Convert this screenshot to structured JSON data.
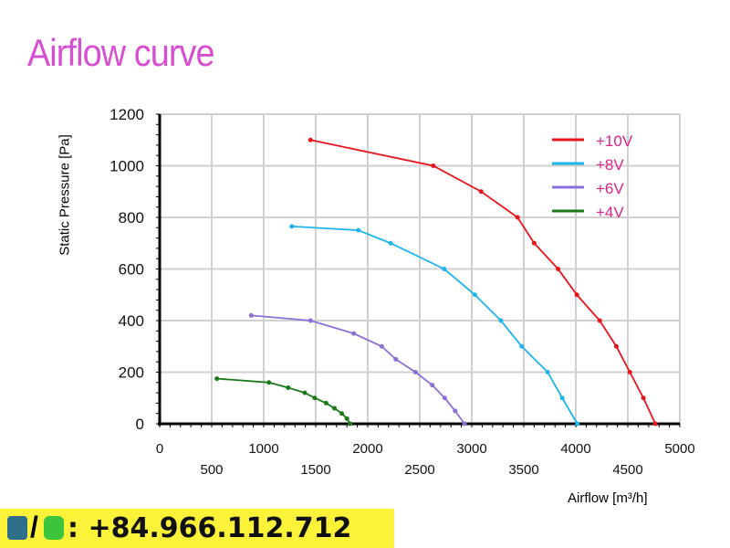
{
  "title": "Airflow curve",
  "contact": {
    "text": ": +84.966.112.712",
    "phone_icon": "phone-icon",
    "whatsapp_icon": "whatsapp-icon",
    "separator": "/"
  },
  "chart_data": {
    "type": "line",
    "title": "Airflow curve",
    "xlabel": "Airflow [m³/h]",
    "ylabel": "Static Pressure [Pa]",
    "xlim": [
      0,
      5000
    ],
    "ylim": [
      0,
      1200
    ],
    "xticks": [
      0,
      500,
      1000,
      1500,
      2000,
      2500,
      3000,
      3500,
      4000,
      4500,
      5000
    ],
    "yticks": [
      0,
      200,
      400,
      600,
      800,
      1000,
      1200
    ],
    "grid": true,
    "legend_position": "top-right",
    "series": [
      {
        "name": "+10V",
        "color": "#e8141c",
        "x": [
          1450,
          2630,
          3090,
          3440,
          3600,
          3830,
          4010,
          4230,
          4390,
          4520,
          4650,
          4765
        ],
        "y": [
          1100,
          1000,
          900,
          800,
          700,
          600,
          500,
          400,
          300,
          200,
          100,
          0
        ]
      },
      {
        "name": "+8V",
        "color": "#1eb4ec",
        "x": [
          1270,
          1910,
          2220,
          2735,
          3030,
          3280,
          3480,
          3730,
          3870,
          4015
        ],
        "y": [
          765,
          750,
          700,
          600,
          500,
          400,
          300,
          200,
          100,
          0
        ]
      },
      {
        "name": "+6V",
        "color": "#8c6fd6",
        "x": [
          880,
          1450,
          1865,
          2135,
          2270,
          2460,
          2620,
          2740,
          2840,
          2930
        ],
        "y": [
          420,
          400,
          350,
          300,
          250,
          200,
          150,
          100,
          50,
          0
        ]
      },
      {
        "name": "+4V",
        "color": "#1a7a1a",
        "x": [
          550,
          1050,
          1235,
          1395,
          1490,
          1600,
          1680,
          1750,
          1800,
          1830
        ],
        "y": [
          175,
          160,
          140,
          120,
          100,
          80,
          60,
          40,
          20,
          0
        ]
      }
    ]
  }
}
